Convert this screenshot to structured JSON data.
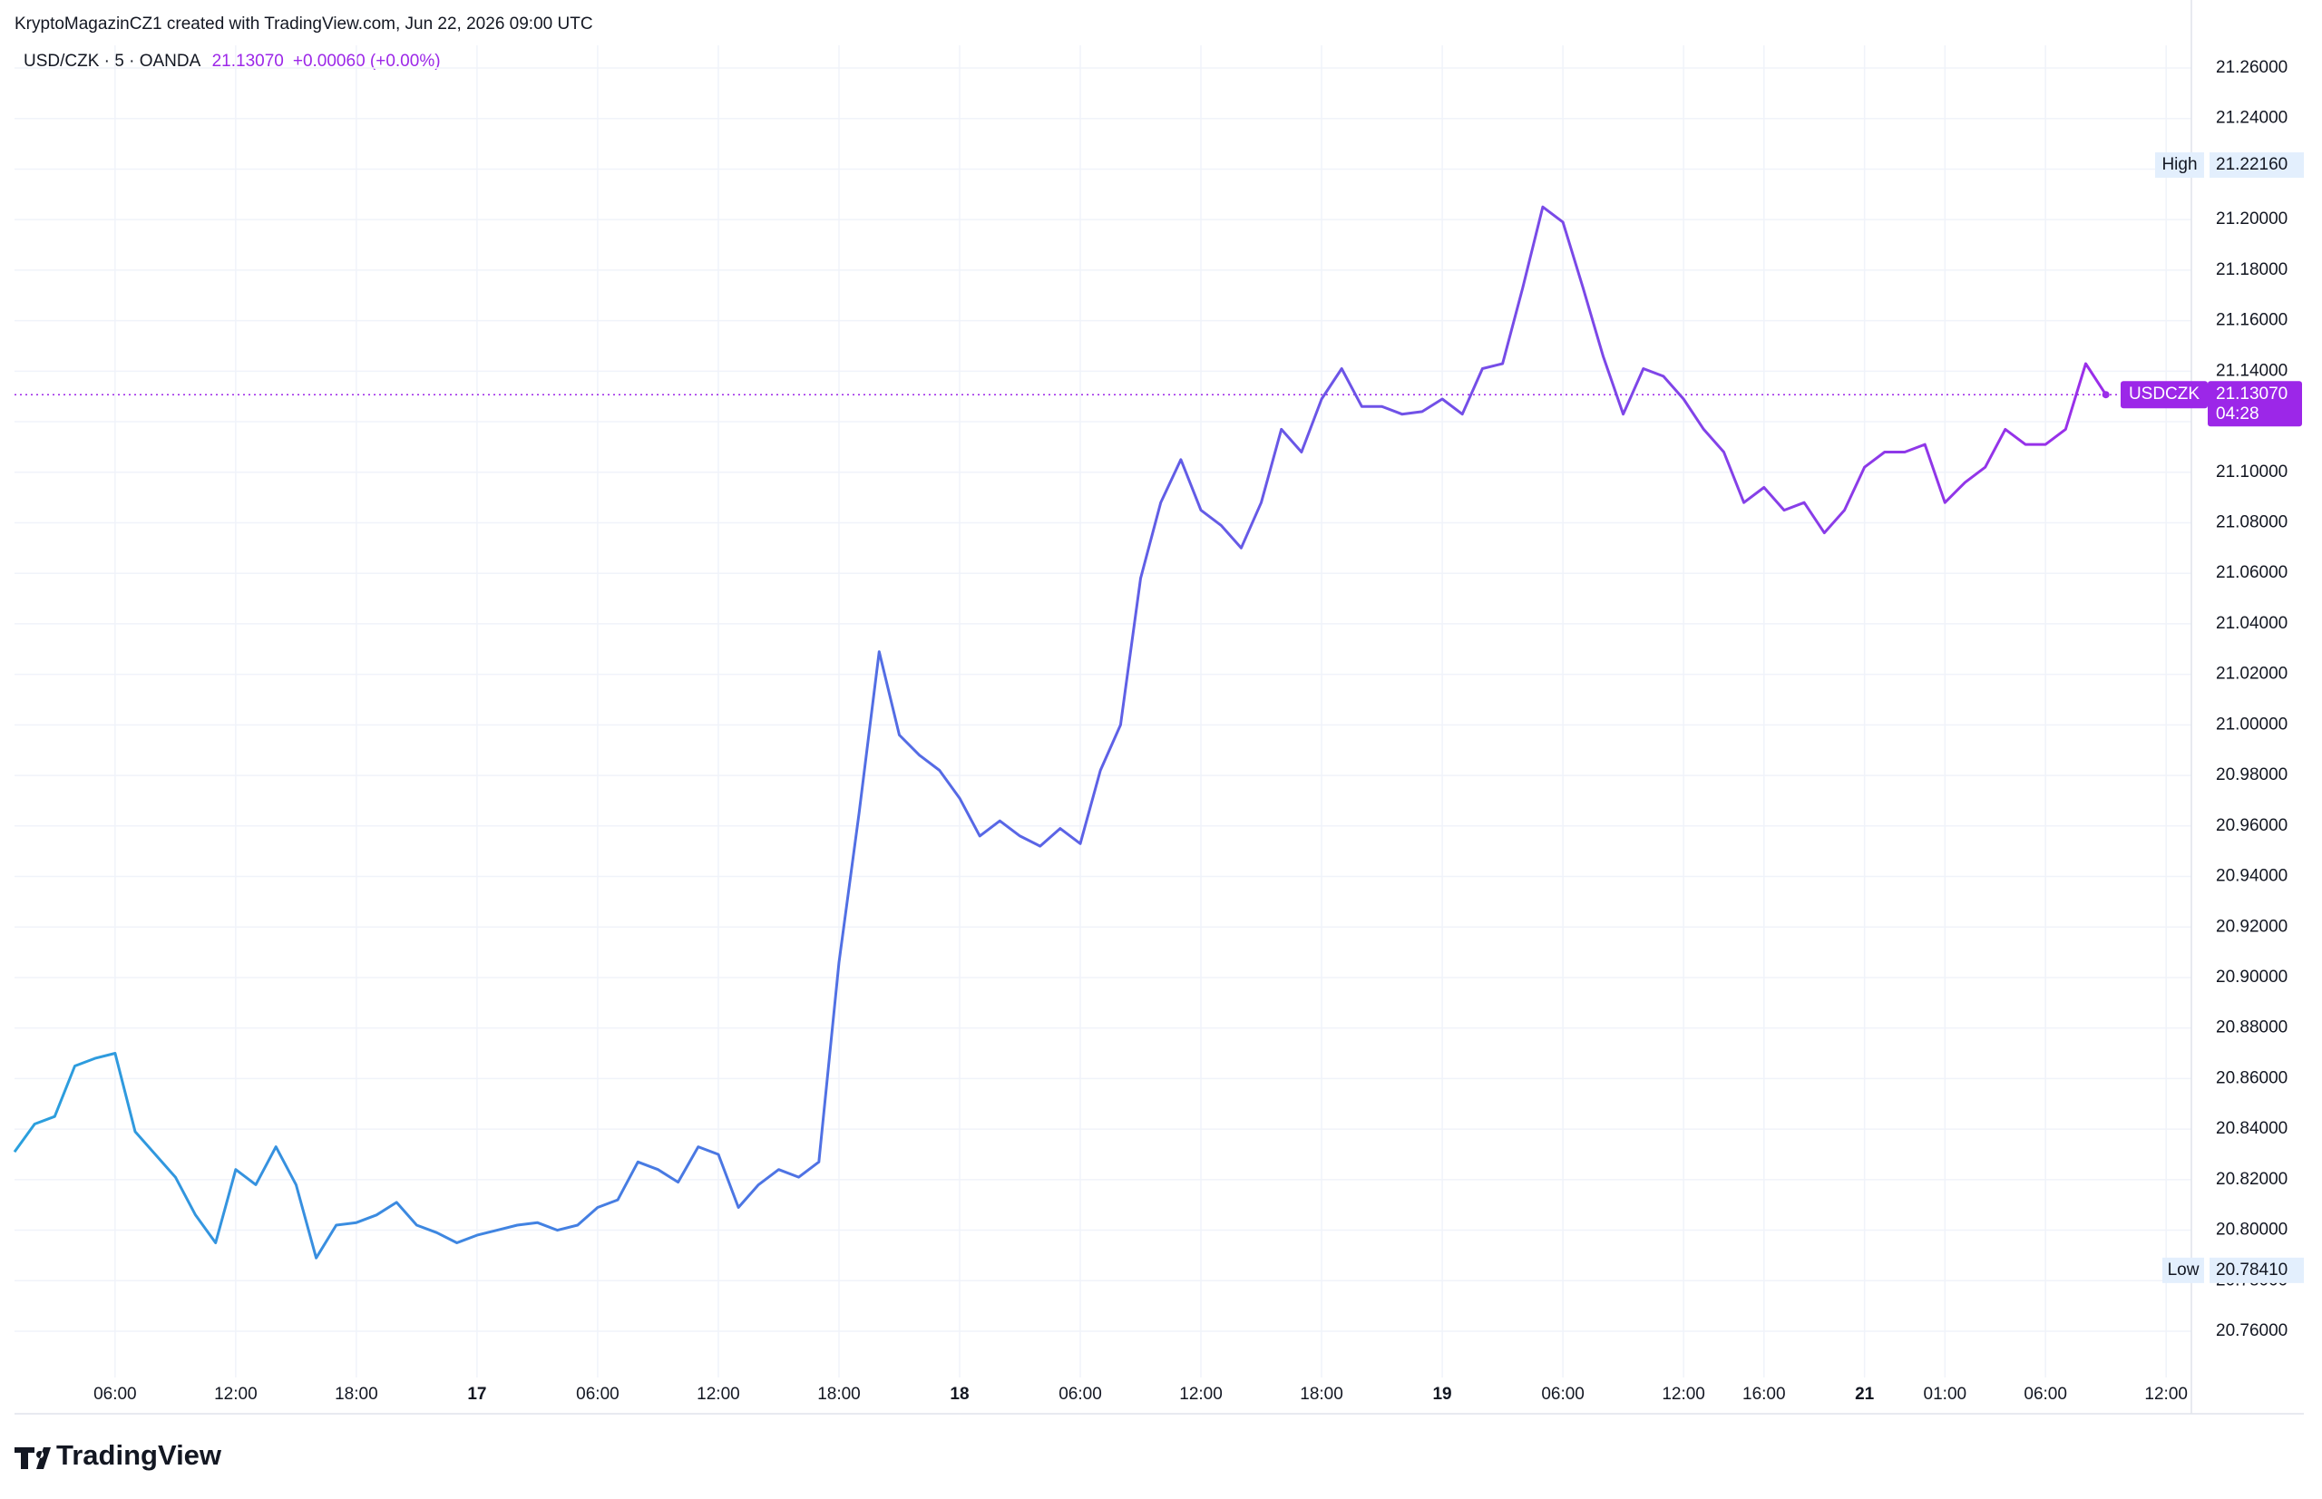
{
  "chart_data": {
    "type": "line",
    "attribution": "KryptoMagazinCZ1 created with TradingView.com, Jun 22, 2026 09:00 UTC",
    "symbol": "USD/CZK · 5 · OANDA",
    "last": "21.13070",
    "change": "+0.00060 (+0.00%)",
    "logo": "TradingView",
    "categories": [
      null,
      null,
      null,
      null,
      null,
      "06:00",
      null,
      null,
      null,
      null,
      null,
      "12:00",
      null,
      null,
      null,
      null,
      null,
      "18:00",
      null,
      null,
      null,
      null,
      null,
      "17",
      null,
      null,
      null,
      null,
      null,
      "06:00",
      null,
      null,
      null,
      null,
      null,
      "12:00",
      null,
      null,
      null,
      null,
      null,
      "18:00",
      null,
      null,
      null,
      null,
      null,
      "18",
      null,
      null,
      null,
      null,
      null,
      "06:00",
      null,
      null,
      null,
      null,
      null,
      "12:00",
      null,
      null,
      null,
      null,
      null,
      "18:00",
      null,
      null,
      null,
      null,
      null,
      "19",
      null,
      null,
      null,
      null,
      null,
      "06:00",
      null,
      null,
      null,
      null,
      null,
      "12:00",
      null,
      null,
      null,
      "16:00",
      null,
      null,
      null,
      null,
      "21",
      null,
      null,
      null,
      "01:00",
      null,
      null,
      null,
      null,
      "06:00",
      null,
      null,
      null,
      null,
      null,
      "12:00"
    ],
    "series": [
      {
        "name": "USDCZK",
        "colors": [
          "#2aa0dd",
          "#5b63e6",
          "#9b2ee9"
        ],
        "values": [
          20.831,
          20.842,
          20.845,
          20.865,
          20.868,
          20.87,
          20.839,
          20.83,
          20.821,
          20.806,
          20.795,
          20.824,
          20.818,
          20.833,
          20.818,
          20.789,
          20.802,
          20.803,
          20.806,
          20.811,
          20.802,
          20.799,
          20.795,
          20.798,
          20.8,
          20.802,
          20.803,
          20.8,
          20.802,
          20.809,
          20.812,
          20.827,
          20.824,
          20.819,
          20.833,
          20.83,
          20.809,
          20.818,
          20.824,
          20.821,
          20.827,
          20.906,
          20.965,
          21.029,
          20.996,
          20.988,
          20.982,
          20.971,
          20.956,
          20.962,
          20.956,
          20.952,
          20.959,
          20.953,
          20.982,
          21.0,
          21.058,
          21.088,
          21.105,
          21.085,
          21.079,
          21.07,
          21.088,
          21.117,
          21.108,
          21.129,
          21.141,
          21.126,
          21.126,
          21.123,
          21.124,
          21.129,
          21.123,
          21.141,
          21.143,
          21.173,
          21.205,
          21.199,
          21.173,
          21.146,
          21.123,
          21.141,
          21.138,
          21.129,
          21.117,
          21.108,
          21.088,
          21.094,
          21.085,
          21.088,
          21.076,
          21.085,
          21.102,
          21.108,
          21.108,
          21.111,
          21.088,
          21.096,
          21.102,
          21.117,
          21.111,
          21.111,
          21.117,
          21.143,
          21.1307,
          null,
          null,
          null
        ]
      }
    ],
    "ylim": [
      20.745,
      21.27
    ],
    "yticks": [
      {
        "value": 20.76,
        "label": "20.76000"
      },
      {
        "value": 20.78,
        "label": "20.78000"
      },
      {
        "value": 20.8,
        "label": "20.80000"
      },
      {
        "value": 20.82,
        "label": "20.82000"
      },
      {
        "value": 20.84,
        "label": "20.84000"
      },
      {
        "value": 20.86,
        "label": "20.86000"
      },
      {
        "value": 20.88,
        "label": "20.88000"
      },
      {
        "value": 20.9,
        "label": "20.90000"
      },
      {
        "value": 20.92,
        "label": "20.92000"
      },
      {
        "value": 20.94,
        "label": "20.94000"
      },
      {
        "value": 20.96,
        "label": "20.96000"
      },
      {
        "value": 20.98,
        "label": "20.98000"
      },
      {
        "value": 21,
        "label": "21.00000"
      },
      {
        "value": 21.02,
        "label": "21.02000"
      },
      {
        "value": 21.04,
        "label": "21.04000"
      },
      {
        "value": 21.06,
        "label": "21.06000"
      },
      {
        "value": 21.08,
        "label": "21.08000"
      },
      {
        "value": 21.1,
        "label": "21.10000"
      },
      {
        "value": 21.12,
        "label": "21.12000"
      },
      {
        "value": 21.14,
        "label": "21.14000"
      },
      {
        "value": 21.16,
        "label": "21.16000"
      },
      {
        "value": 21.18,
        "label": "21.18000"
      },
      {
        "value": 21.2,
        "label": "21.20000"
      },
      {
        "value": 21.22,
        "label": "21.22000"
      },
      {
        "value": 21.24,
        "label": "21.24000"
      },
      {
        "value": 21.26,
        "label": "21.26000"
      }
    ],
    "high": {
      "label": "High",
      "value": 21.2216,
      "value_label": "21.22160"
    },
    "low": {
      "label": "Low",
      "value": 20.7841,
      "value_label": "20.78410"
    },
    "price_label": {
      "name": "USDCZK",
      "value": 21.1307,
      "value_label": "21.13070",
      "countdown": "04:28",
      "color": "#9c27e8"
    },
    "grid": true
  }
}
